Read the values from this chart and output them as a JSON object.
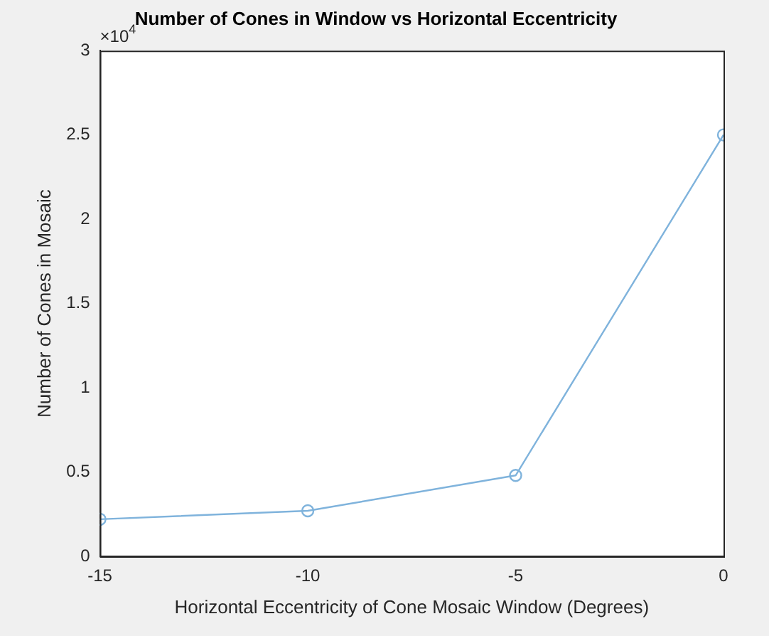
{
  "chart_data": {
    "type": "line",
    "title": "Number of Cones in Window vs Horizontal Eccentricity",
    "xlabel": "Horizontal Eccentricity of Cone Mosaic Window (Degrees)",
    "ylabel": "Number of Cones in Mosaic",
    "x": [
      -15,
      -10,
      -5,
      0
    ],
    "series": [
      {
        "color": "#7fb3dc",
        "values": [
          0.22,
          0.27,
          0.48,
          2.5
        ]
      }
    ],
    "xlim": [
      -15,
      0
    ],
    "xticks": [
      -15,
      -10,
      -5,
      0
    ],
    "ylim": [
      0,
      3
    ],
    "yticks": [
      0,
      0.5,
      1,
      1.5,
      2,
      2.5,
      3
    ],
    "annotations": [
      "×10$^{4}$"
    ],
    "marker": "circle",
    "line_style": "solid",
    "grid": false,
    "legend": false
  }
}
